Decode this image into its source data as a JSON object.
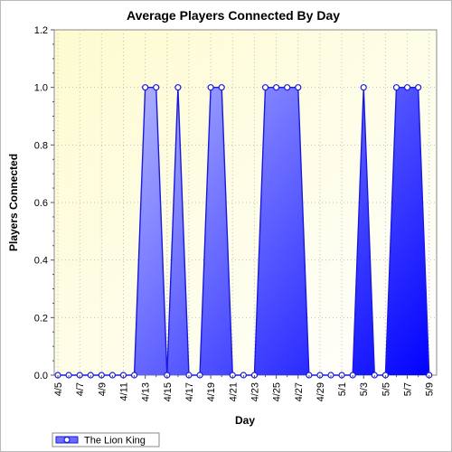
{
  "chart_data": {
    "type": "area",
    "title": "Average Players Connected By Day",
    "xlabel": "Day",
    "ylabel": "Players Connected",
    "ylim": [
      0,
      1.2
    ],
    "yticks": [
      "0.0",
      "0.2",
      "0.4",
      "0.6",
      "0.8",
      "1.0",
      "1.2"
    ],
    "xtick_labels": [
      "4/5",
      "4/7",
      "4/9",
      "4/11",
      "4/13",
      "4/15",
      "4/17",
      "4/19",
      "4/21",
      "4/23",
      "4/25",
      "4/27",
      "4/29",
      "5/1",
      "5/3",
      "5/5",
      "5/7",
      "5/9"
    ],
    "categories": [
      "4/5",
      "4/6",
      "4/7",
      "4/8",
      "4/9",
      "4/10",
      "4/11",
      "4/12",
      "4/13",
      "4/14",
      "4/15",
      "4/16",
      "4/17",
      "4/18",
      "4/19",
      "4/20",
      "4/21",
      "4/22",
      "4/23",
      "4/24",
      "4/25",
      "4/26",
      "4/27",
      "4/28",
      "4/29",
      "4/30",
      "5/1",
      "5/2",
      "5/3",
      "5/4",
      "5/5",
      "5/6",
      "5/7",
      "5/8",
      "5/9"
    ],
    "series": [
      {
        "name": "The Lion King",
        "values": [
          0,
          0,
          0,
          0,
          0,
          0,
          0,
          0,
          1,
          1,
          0,
          1,
          0,
          0,
          1,
          1,
          0,
          0,
          0,
          1,
          1,
          1,
          1,
          0,
          0,
          0,
          0,
          0,
          1,
          0,
          0,
          1,
          1,
          1,
          0
        ]
      }
    ],
    "grid": true,
    "legend": "bottom-left",
    "colors": {
      "plot_bg_top": "#fdfde0",
      "plot_bg_bottom": "#ffffff",
      "line": "#1a1adc",
      "fill_light": "#c4c8ff",
      "fill_dark": "#0000ff",
      "grid": "#c0c0c0"
    }
  }
}
